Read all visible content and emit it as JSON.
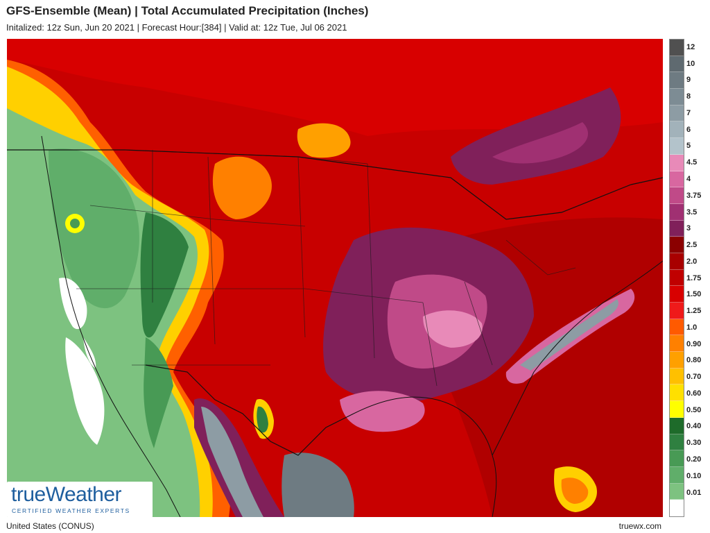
{
  "header": {
    "title": "GFS-Ensemble (Mean) | Total Accumulated Precipitation (Inches)",
    "subtitle": "Initalized: 12z Sun, Jun 20 2021 | Forecast Hour:[384] | Valid at: 12z Tue, Jul 06 2021"
  },
  "footer": {
    "region": "United States (CONUS)",
    "site": "truewx.com"
  },
  "logo": {
    "brand": "trueWeather",
    "tagline": "CERTIFIED WEATHER EXPERTS"
  },
  "legend": [
    {
      "label": "12",
      "color": "#505050"
    },
    {
      "label": "10",
      "color": "#5f6a70"
    },
    {
      "label": "9",
      "color": "#6e7b82"
    },
    {
      "label": "8",
      "color": "#7d8c94"
    },
    {
      "label": "7",
      "color": "#8d9ca4"
    },
    {
      "label": "6",
      "color": "#a2b2ba"
    },
    {
      "label": "5",
      "color": "#b3c3cb"
    },
    {
      "label": "4.5",
      "color": "#e88ab8"
    },
    {
      "label": "4",
      "color": "#d867a0"
    },
    {
      "label": "3.75",
      "color": "#c04a88"
    },
    {
      "label": "3.5",
      "color": "#a03072"
    },
    {
      "label": "3",
      "color": "#80205a"
    },
    {
      "label": "2.5",
      "color": "#8b0000"
    },
    {
      "label": "2.0",
      "color": "#a80000"
    },
    {
      "label": "1.75",
      "color": "#c00000"
    },
    {
      "label": "1.50",
      "color": "#d80000"
    },
    {
      "label": "1.25",
      "color": "#ef1a1a"
    },
    {
      "label": "1.0",
      "color": "#ff5a00"
    },
    {
      "label": "0.90",
      "color": "#ff8000"
    },
    {
      "label": "0.80",
      "color": "#ffa000"
    },
    {
      "label": "0.70",
      "color": "#ffc000"
    },
    {
      "label": "0.60",
      "color": "#ffe000"
    },
    {
      "label": "0.50",
      "color": "#ffff00"
    },
    {
      "label": "0.40",
      "color": "#1e6b2a"
    },
    {
      "label": "0.30",
      "color": "#2f8040"
    },
    {
      "label": "0.20",
      "color": "#489a55"
    },
    {
      "label": "0.10",
      "color": "#60ae6a"
    },
    {
      "label": "0.01",
      "color": "#7dc280"
    },
    {
      "label": "",
      "color": "#ffffff"
    }
  ]
}
